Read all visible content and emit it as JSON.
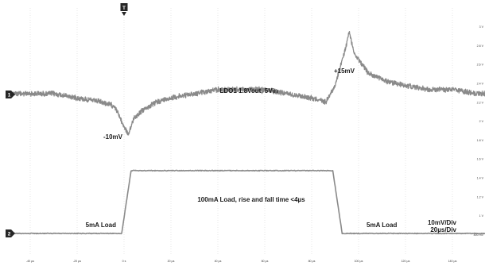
{
  "chart_data": {
    "type": "line",
    "title": "",
    "xlabel": "",
    "ylabel": "",
    "x_unit": "µs",
    "x_ticks": [
      "-40 µs",
      "-20 µs",
      "0 s",
      "20 µs",
      "40 µs",
      "60 µs",
      "80 µs",
      "100 µs",
      "120 µs",
      "140 µs",
      "160 µs"
    ],
    "y_ticks": [
      "800 mV",
      "1 V",
      "1.2 V",
      "1.4 V",
      "1.6 V",
      "1.8 V",
      "2 V",
      "2.2 V",
      "2.4 V",
      "2.6 V",
      "2.8 V",
      "3 V"
    ],
    "xlim": [
      -50,
      165
    ],
    "grid": true,
    "trigger_marker": "T",
    "series": [
      {
        "channel": "1",
        "unit": "mV",
        "color": "#8a8a8a",
        "points": [
          [
            -50,
            0
          ],
          [
            -30,
            0
          ],
          [
            -20,
            -1
          ],
          [
            -10,
            -2
          ],
          [
            -4,
            -3
          ],
          [
            0,
            -8
          ],
          [
            2,
            -10
          ],
          [
            4,
            -6
          ],
          [
            8,
            -4
          ],
          [
            14,
            -2
          ],
          [
            20,
            -1
          ],
          [
            30,
            0
          ],
          [
            40,
            1
          ],
          [
            50,
            1
          ],
          [
            60,
            1
          ],
          [
            70,
            0
          ],
          [
            80,
            -1
          ],
          [
            86,
            -2
          ],
          [
            90,
            2
          ],
          [
            94,
            10
          ],
          [
            96,
            15
          ],
          [
            98,
            10
          ],
          [
            104,
            5
          ],
          [
            112,
            3
          ],
          [
            120,
            2
          ],
          [
            130,
            1
          ],
          [
            140,
            1
          ],
          [
            150,
            0
          ],
          [
            165,
            0
          ]
        ]
      },
      {
        "channel": "2",
        "unit": "mA",
        "color": "#8a8a8a",
        "points": [
          [
            -50,
            5
          ],
          [
            -1,
            5
          ],
          [
            3,
            100
          ],
          [
            89,
            100
          ],
          [
            93,
            5
          ],
          [
            165,
            5
          ]
        ]
      }
    ],
    "annotations": {
      "title": "LDO1 1.8Vout, 5Vin",
      "min": "-10mV",
      "max": "+15mV",
      "load_title": "100mA Load, rise and fall time <4µs",
      "load_left": "5mA Load",
      "load_right": "5mA Load",
      "scale_v": "10mV/Div",
      "scale_t": "20µs/Div"
    },
    "markers": {
      "ch1": "1",
      "ch2": "2",
      "trigger": "T"
    }
  }
}
